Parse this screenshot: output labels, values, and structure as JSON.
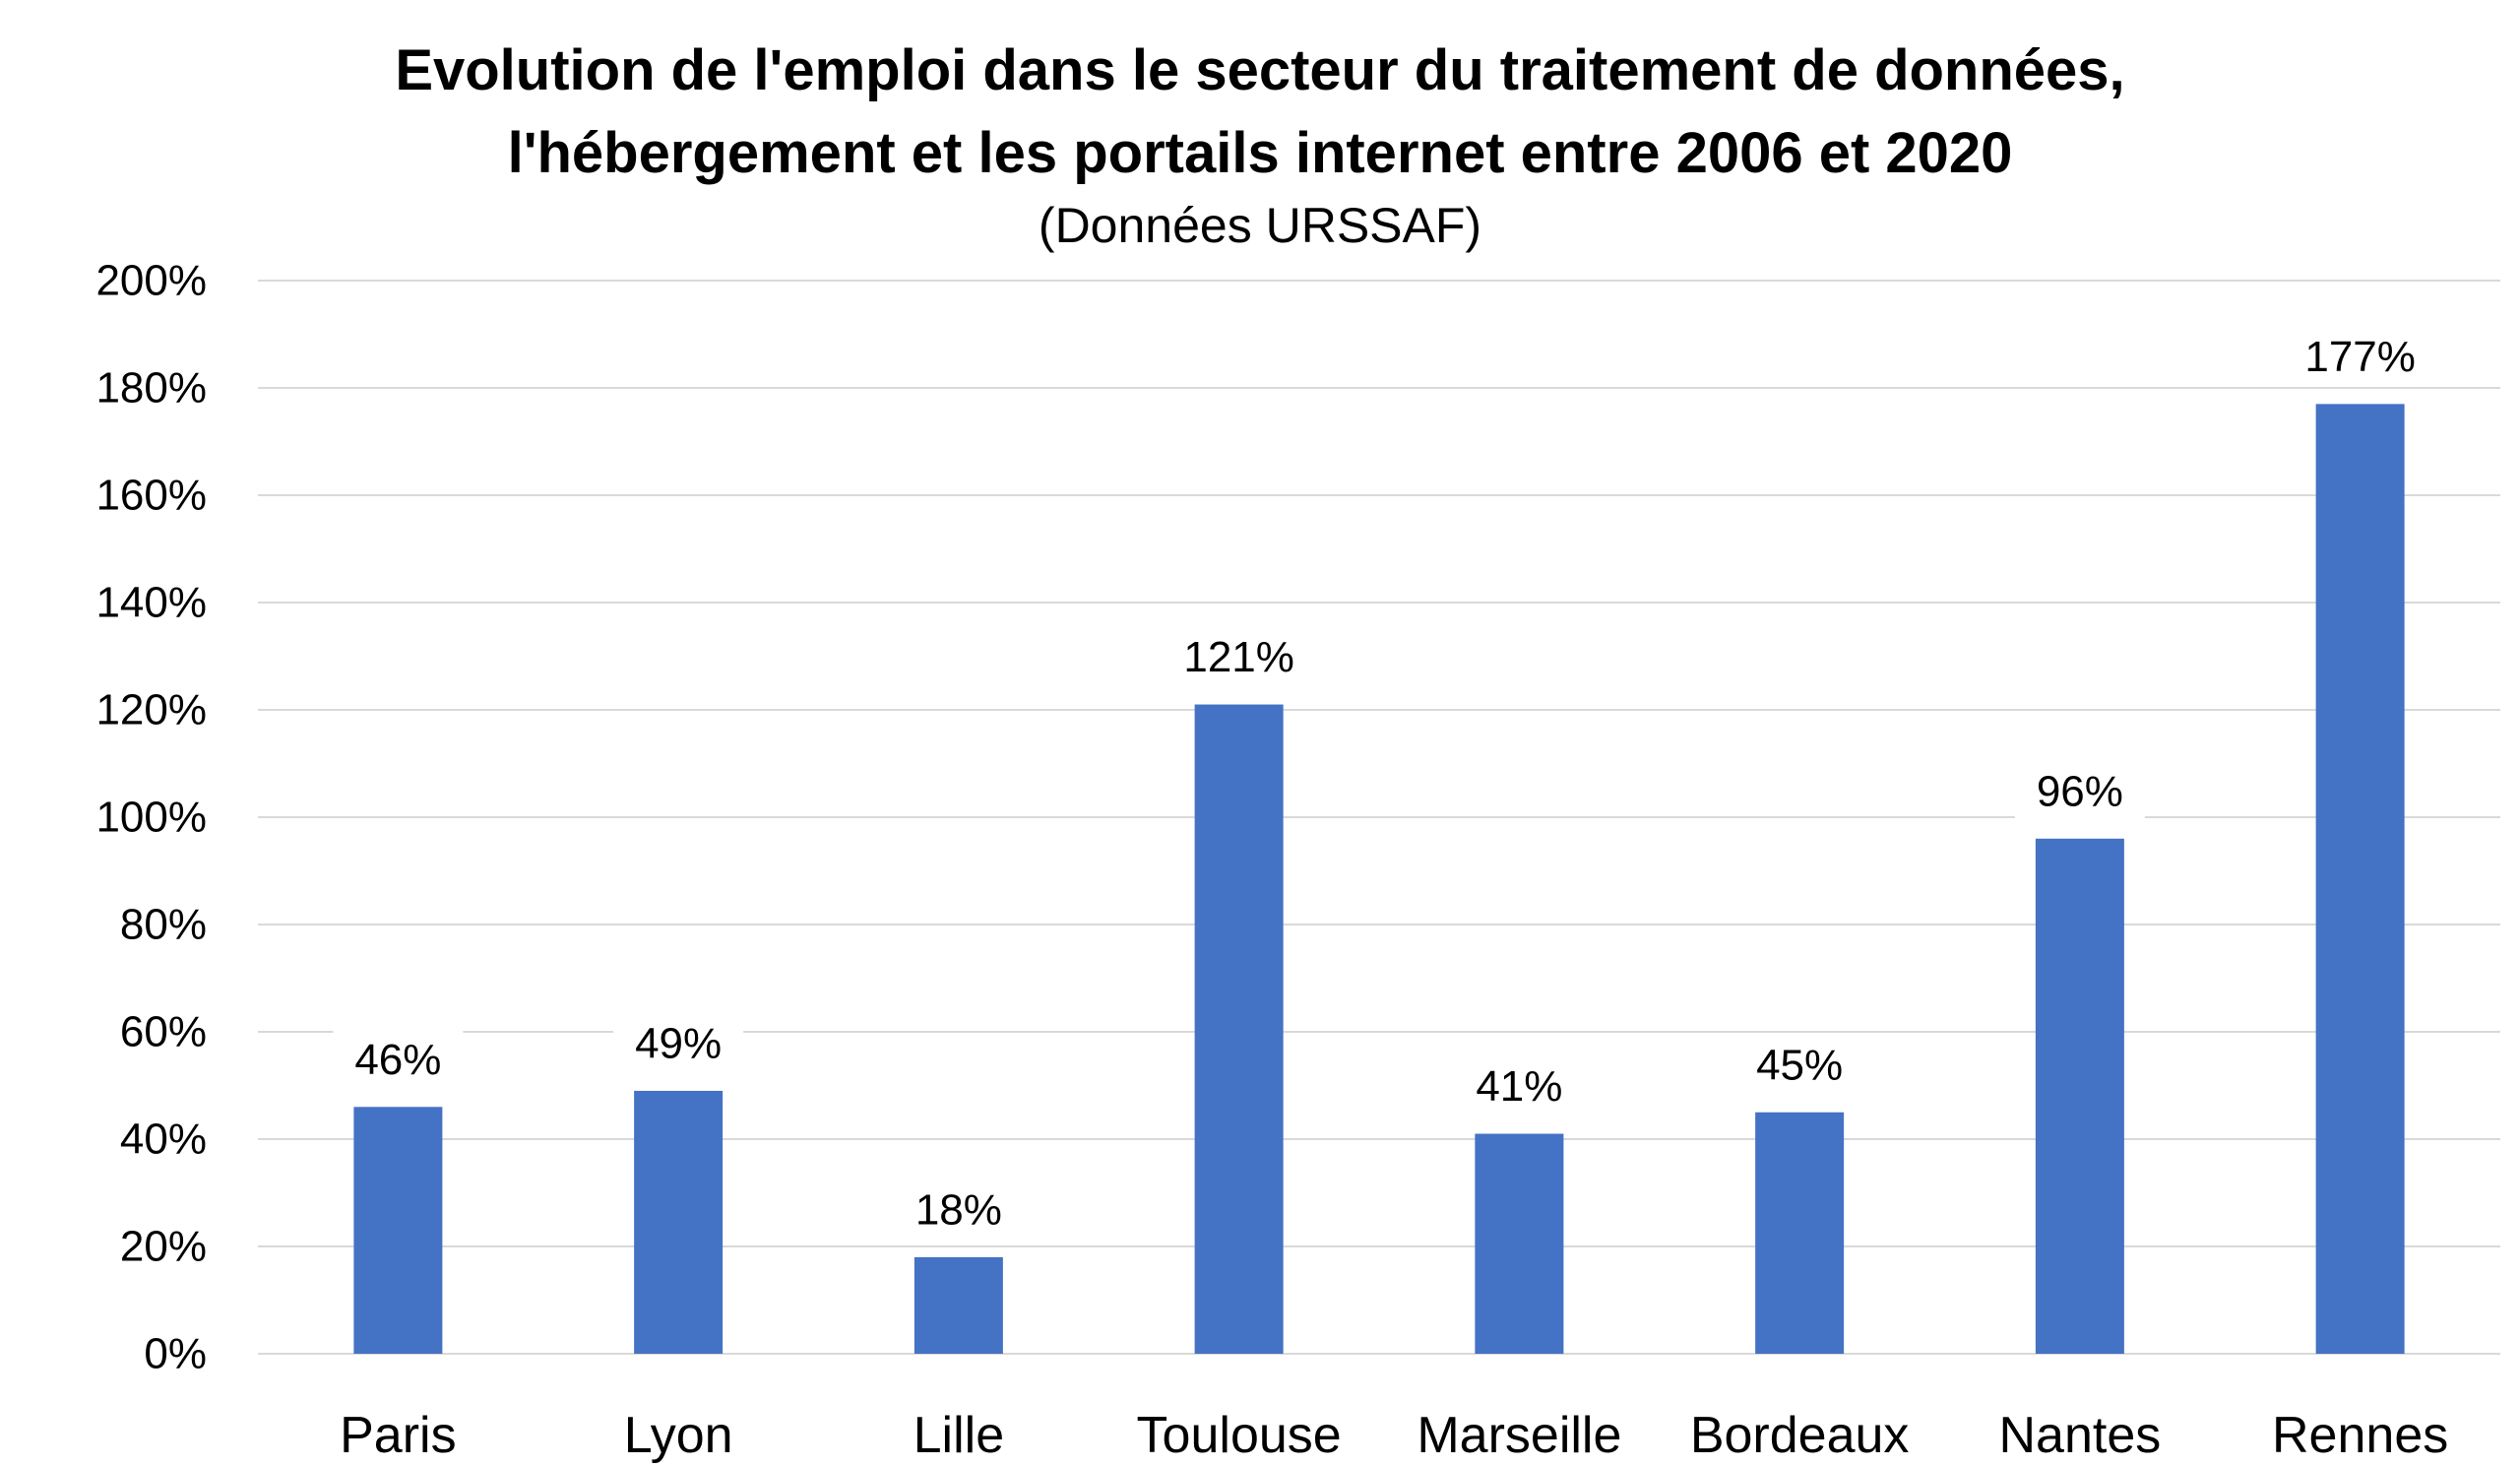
{
  "chart_data": {
    "type": "bar",
    "title_lines": [
      "Evolution de l'emploi dans le secteur du traitement de données,",
      "l'hébergement et les portails internet entre 2006 et 2020"
    ],
    "subtitle": "(Données URSSAF)",
    "categories": [
      "Paris",
      "Lyon",
      "Lille",
      "Toulouse",
      "Marseille",
      "Bordeaux",
      "Nantes",
      "Rennes"
    ],
    "values": [
      46,
      49,
      18,
      121,
      41,
      45,
      96,
      177
    ],
    "data_labels": [
      "46%",
      "49%",
      "18%",
      "121%",
      "41%",
      "45%",
      "96%",
      "177%"
    ],
    "ylim": [
      0,
      200
    ],
    "y_ticks": [
      0,
      20,
      40,
      60,
      80,
      100,
      120,
      140,
      160,
      180,
      200
    ],
    "y_tick_labels": [
      "0%",
      "20%",
      "40%",
      "60%",
      "80%",
      "100%",
      "120%",
      "140%",
      "160%",
      "180%",
      "200%"
    ],
    "xlabel": "",
    "ylabel": "",
    "grid": true,
    "legend": "none",
    "bar_color": "#4472C4",
    "grid_color": "#D9D9D9"
  }
}
